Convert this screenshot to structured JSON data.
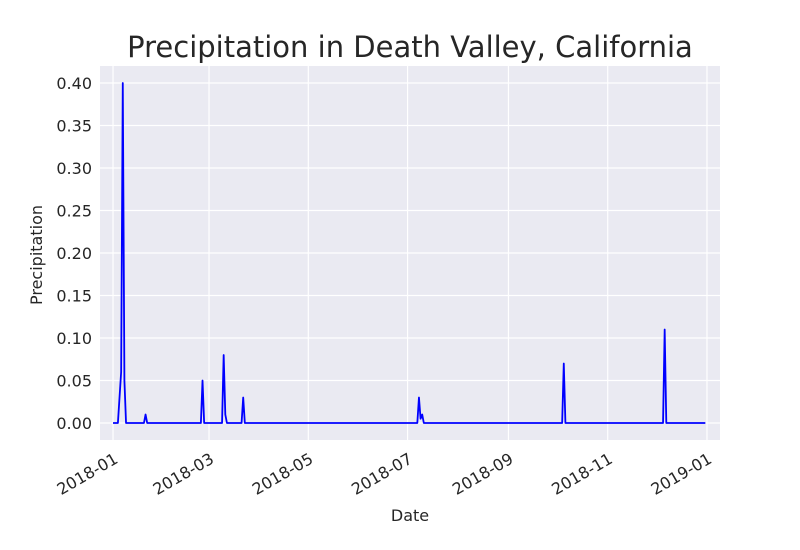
{
  "chart_data": {
    "type": "line",
    "title": "Precipitation in Death Valley, California",
    "xlabel": "Date",
    "ylabel": "Precipitation",
    "x_range": [
      "2017-12-24",
      "2019-01-09"
    ],
    "ylim": [
      -0.02,
      0.42
    ],
    "x_ticks": [
      "2018-01",
      "2018-03",
      "2018-05",
      "2018-07",
      "2018-09",
      "2018-11",
      "2019-01"
    ],
    "y_ticks": [
      "0.00",
      "0.05",
      "0.10",
      "0.15",
      "0.20",
      "0.25",
      "0.30",
      "0.35",
      "0.40"
    ],
    "grid": true,
    "line_color": "#0000ff",
    "background_color": "#eaeaf2",
    "x": [
      "2018-01-01",
      "2018-01-04",
      "2018-01-06",
      "2018-01-07",
      "2018-01-08",
      "2018-01-09",
      "2018-01-20",
      "2018-01-21",
      "2018-01-22",
      "2018-02-24",
      "2018-02-25",
      "2018-02-26",
      "2018-03-09",
      "2018-03-10",
      "2018-03-11",
      "2018-03-12",
      "2018-03-21",
      "2018-03-22",
      "2018-03-23",
      "2018-07-07",
      "2018-07-08",
      "2018-07-09",
      "2018-07-10",
      "2018-07-11",
      "2018-07-12",
      "2018-10-04",
      "2018-10-05",
      "2018-10-06",
      "2018-12-05",
      "2018-12-06",
      "2018-12-07",
      "2018-12-31"
    ],
    "y": [
      0,
      0,
      0.06,
      0.4,
      0.05,
      0,
      0,
      0.01,
      0,
      0,
      0.05,
      0,
      0,
      0.08,
      0.01,
      0,
      0,
      0.03,
      0,
      0,
      0.03,
      0.005,
      0.01,
      0,
      0,
      0,
      0.07,
      0,
      0,
      0.11,
      0,
      0
    ]
  }
}
